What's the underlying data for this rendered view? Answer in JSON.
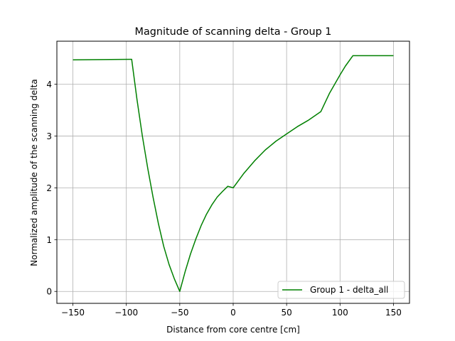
{
  "chart_data": {
    "type": "line",
    "title": "Magnitude of scanning delta - Group 1",
    "xlabel": "Distance from core centre [cm]",
    "ylabel": "Normalized amplitude of the scanning delta",
    "xlim": [
      -165,
      165
    ],
    "ylim": [
      -0.23,
      4.83
    ],
    "xticks": [
      -150,
      -100,
      -50,
      0,
      50,
      100,
      150
    ],
    "xtick_labels": [
      "−150",
      "−100",
      "−50",
      "0",
      "50",
      "100",
      "150"
    ],
    "yticks": [
      0,
      1,
      2,
      3,
      4
    ],
    "ytick_labels": [
      "0",
      "1",
      "2",
      "3",
      "4"
    ],
    "grid": true,
    "legend_position": "lower right",
    "series": [
      {
        "name": "Group 1 - delta_all",
        "color": "#008000",
        "x": [
          -150,
          -96,
          -95,
          -90,
          -85,
          -80,
          -75,
          -70,
          -65,
          -60,
          -55,
          -50,
          -45,
          -40,
          -35,
          -30,
          -25,
          -20,
          -15,
          -10,
          -5,
          0,
          10,
          20,
          30,
          40,
          50,
          60,
          70,
          82,
          90,
          100,
          105,
          112,
          150
        ],
        "y": [
          4.47,
          4.48,
          4.48,
          3.7,
          3.0,
          2.38,
          1.82,
          1.31,
          0.87,
          0.52,
          0.24,
          0.0,
          0.38,
          0.72,
          1.01,
          1.27,
          1.49,
          1.67,
          1.82,
          1.93,
          2.03,
          2.0,
          2.28,
          2.52,
          2.73,
          2.9,
          3.04,
          3.18,
          3.3,
          3.47,
          3.82,
          4.18,
          4.35,
          4.55,
          4.55
        ]
      }
    ]
  }
}
